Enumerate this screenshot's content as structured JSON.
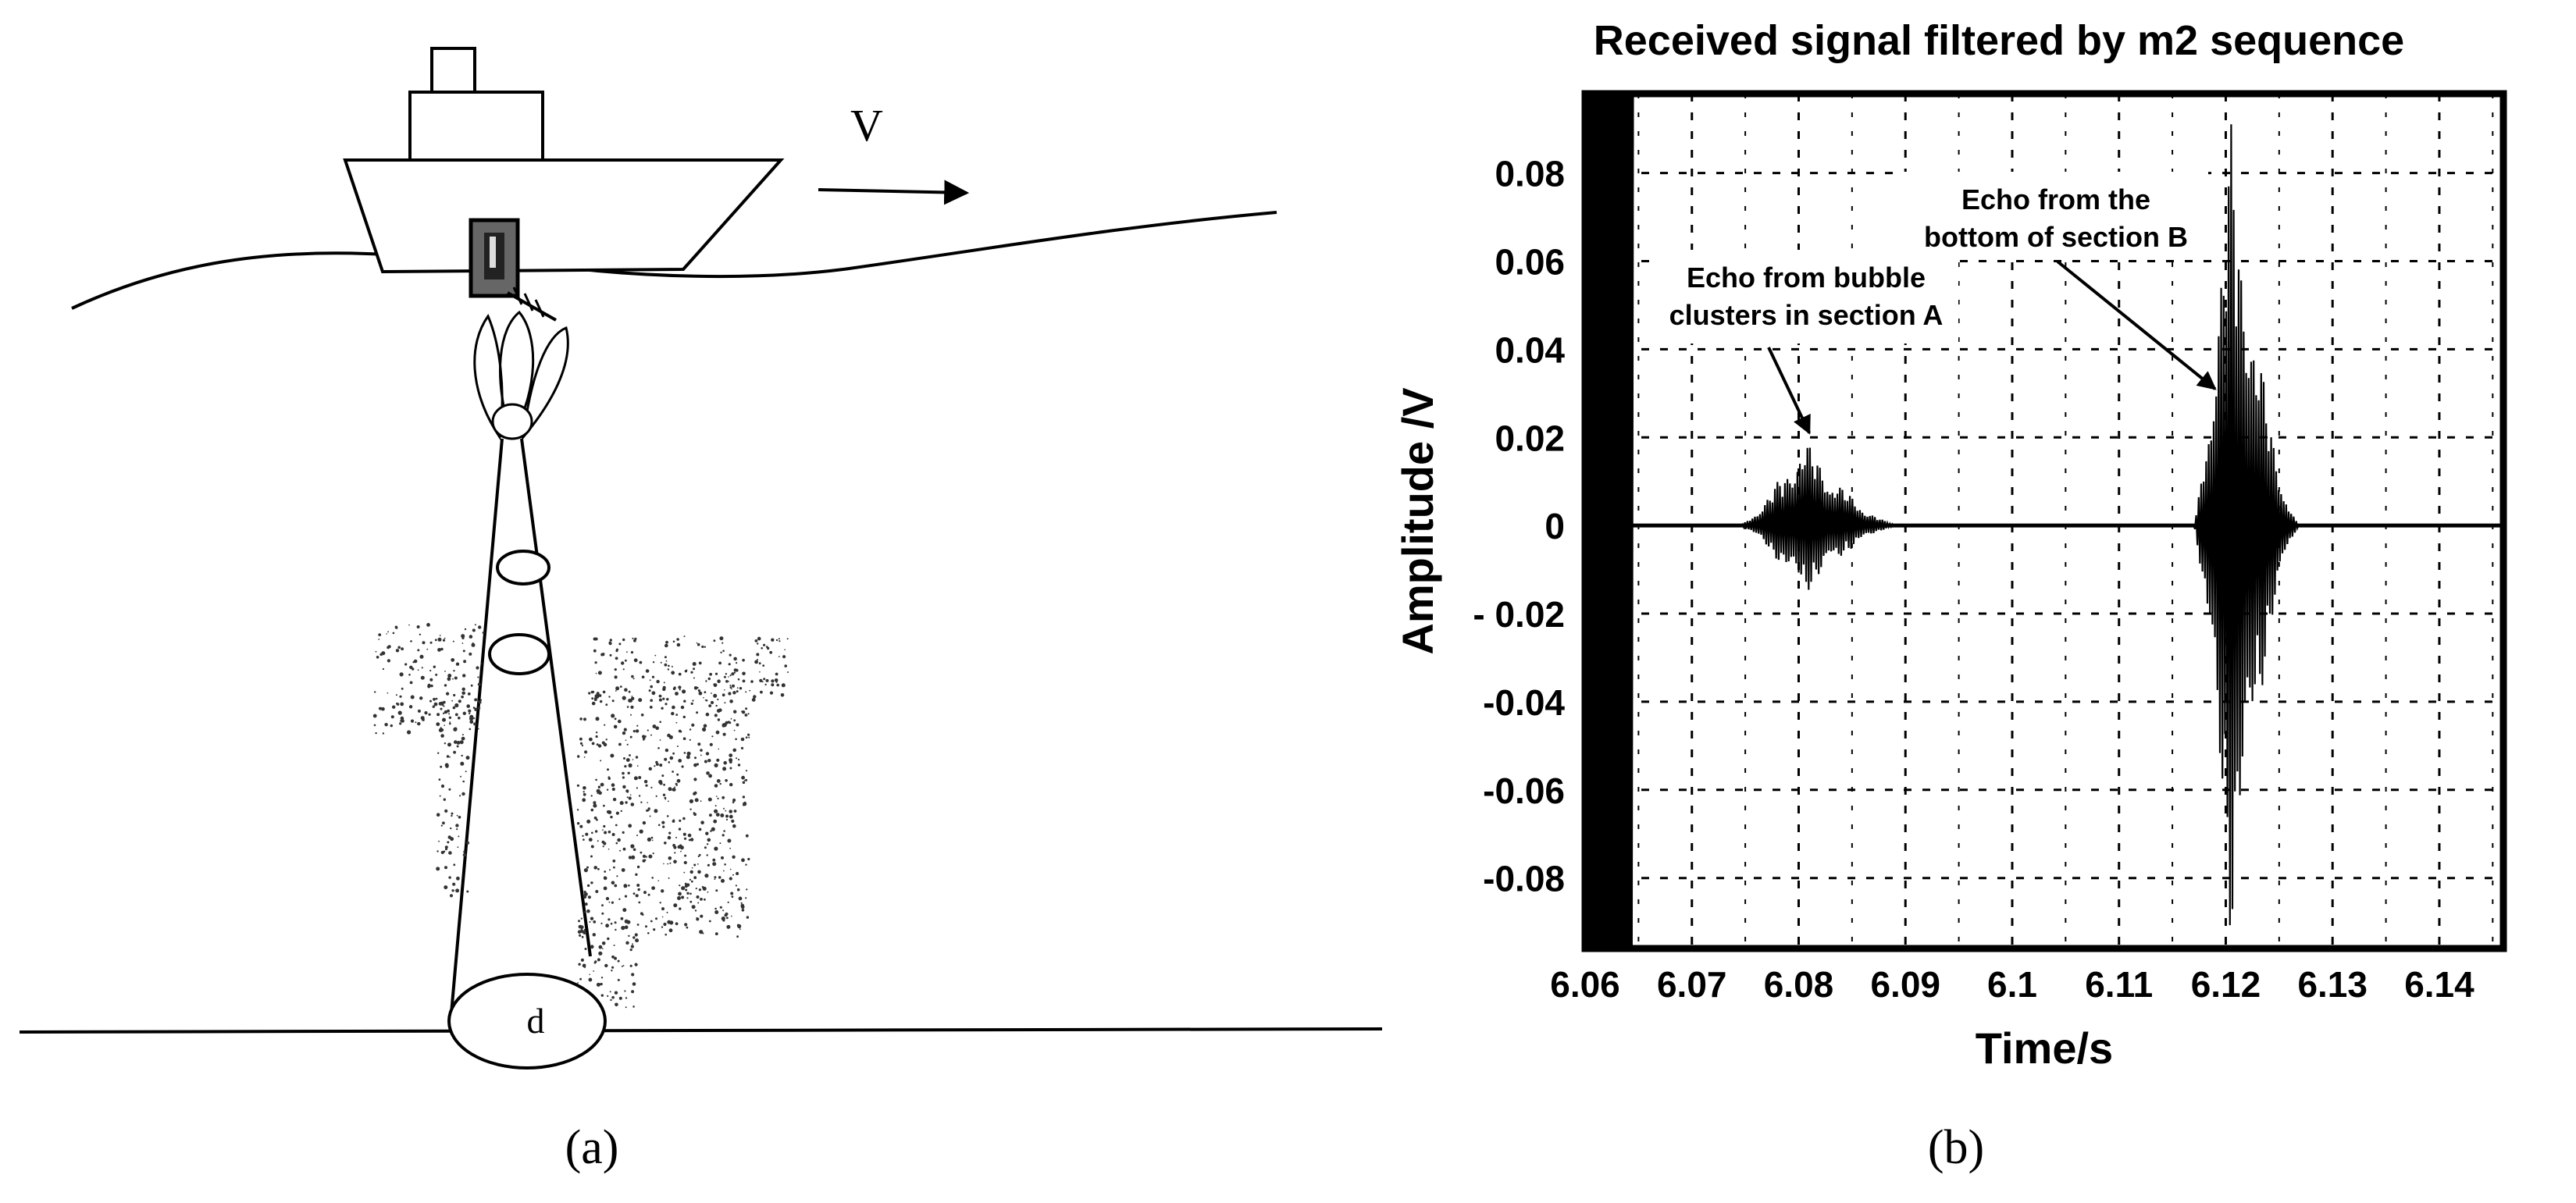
{
  "panel_a": {
    "velocity_label": "V",
    "diameter_label": "d",
    "caption": "(a)"
  },
  "panel_b": {
    "caption": "(b)"
  },
  "chart_data": {
    "type": "line",
    "title": "Received signal filtered by m2 sequence",
    "xlabel": "Time/s",
    "ylabel": "Amplitude /V",
    "xlim": [
      6.06,
      6.146
    ],
    "ylim": [
      -0.096,
      0.098
    ],
    "x_ticks": [
      6.06,
      6.07,
      6.08,
      6.09,
      6.1,
      6.11,
      6.12,
      6.13,
      6.14
    ],
    "x_tick_labels": [
      "6.06",
      "6.07",
      "6.08",
      "6.09",
      "6.1",
      "6.11",
      "6.12",
      "6.13",
      "6.14"
    ],
    "y_ticks": [
      0.08,
      0.06,
      0.04,
      0.02,
      0,
      -0.02,
      -0.04,
      -0.06,
      -0.08
    ],
    "y_tick_labels": [
      "0.08",
      "0.06",
      "0.04",
      "0.02",
      "0",
      "- 0.02",
      "-0.04",
      "-0.06",
      "-0.08"
    ],
    "grid": true,
    "grid_style": "dashed",
    "series": [
      {
        "color": "#000000",
        "segments": [
          {
            "x_start": 6.06,
            "x_end": 6.0645,
            "envelope_max": 0.098,
            "envelope_min": -0.096
          },
          {
            "x_start": 6.0745,
            "x_end": 6.0895,
            "peak_time": 6.0805,
            "envelope_max": 0.02,
            "envelope_min": -0.016
          },
          {
            "x_start": 6.117,
            "x_end": 6.127,
            "peak_time": 6.1205,
            "envelope_max": 0.092,
            "envelope_min": -0.096
          }
        ],
        "baseline": 0
      }
    ],
    "annotations": [
      {
        "text_lines": [
          "Echo from bubble",
          "clusters in section A"
        ],
        "arrow_to": {
          "x": 6.081,
          "y": 0.021
        }
      },
      {
        "text_lines": [
          "Echo from the",
          "bottom of section B"
        ],
        "arrow_to": {
          "x": 6.119,
          "y": 0.031
        }
      }
    ]
  }
}
